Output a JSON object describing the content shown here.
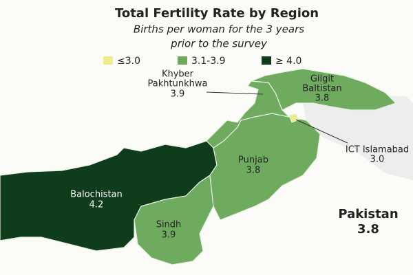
{
  "title": "Total Fertility Rate by Region",
  "subtitle_lines": [
    "Births per woman for the 3 years",
    "prior to the survey"
  ],
  "legend": [
    {
      "label": "≤3.0",
      "color": "#eeec8c"
    },
    {
      "label": "3.1-3.9",
      "color": "#6fab5e"
    },
    {
      "label": "≥ 4.0",
      "color": "#0f3d1c"
    }
  ],
  "regions": [
    {
      "name_lines": [
        "Khyber",
        "Pakhtunkhwa"
      ],
      "value": "3.9"
    },
    {
      "name_lines": [
        "Gilgit",
        "Baltistan"
      ],
      "value": "3.8"
    },
    {
      "name_lines": [
        "Punjab"
      ],
      "value": "3.8"
    },
    {
      "name_lines": [
        "ICT Islamabad"
      ],
      "value": "3.0"
    },
    {
      "name_lines": [
        "Balochistan"
      ],
      "value": "4.2"
    },
    {
      "name_lines": [
        "Sindh"
      ],
      "value": "3.9"
    }
  ],
  "national": {
    "name": "Pakistan",
    "value": "3.8"
  }
}
